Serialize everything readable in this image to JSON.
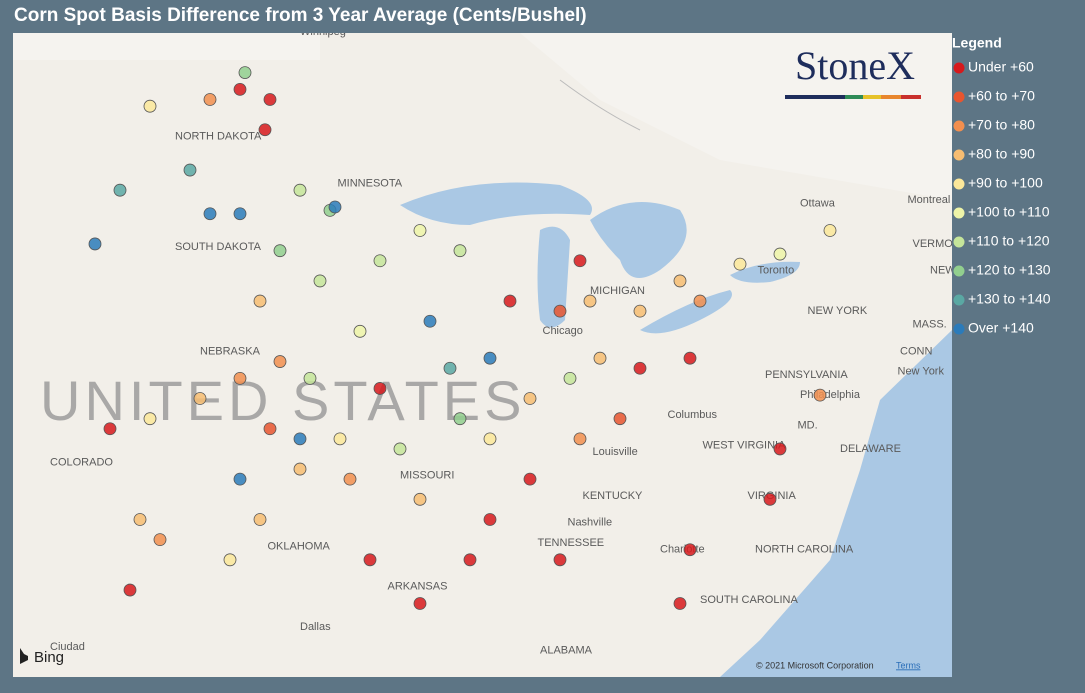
{
  "title": "Corn Spot Basis Difference from 3 Year Average (Cents/Bushel)",
  "legend": {
    "title": "Legend",
    "items": [
      {
        "name": "Under +60",
        "color": "#d7191c"
      },
      {
        "name": "+60 to +70",
        "color": "#e8552f"
      },
      {
        "name": "+70 to +80",
        "color": "#f28f4f"
      },
      {
        "name": "+80 to +90",
        "color": "#f7bd72"
      },
      {
        "name": "+90 to +100",
        "color": "#fbe79a"
      },
      {
        "name": "+100 to +110",
        "color": "#eef4a8"
      },
      {
        "name": "+110 to +120",
        "color": "#c5e59a"
      },
      {
        "name": "+120 to +130",
        "color": "#92cf8e"
      },
      {
        "name": "+130 to +140",
        "color": "#5aa8a3"
      },
      {
        "name": "Over +140",
        "color": "#2b7bba"
      }
    ]
  },
  "logo": "StoneX",
  "map": {
    "attribution": "© 2021 Microsoft Corporation",
    "terms": "Terms",
    "provider": "Bing",
    "places": [
      {
        "name": "NORTH DAKOTA",
        "lon": -101.8,
        "lat": 47.4
      },
      {
        "name": "MINNESOTA",
        "lon": -95.3,
        "lat": 46.0
      },
      {
        "name": "SOUTH DAKOTA",
        "lon": -101.8,
        "lat": 44.1
      },
      {
        "name": "NEBRASKA",
        "lon": -100.8,
        "lat": 41.0
      },
      {
        "name": "COLORADO",
        "lon": -106.8,
        "lat": 37.7
      },
      {
        "name": "OKLAHOMA",
        "lon": -98.1,
        "lat": 35.2
      },
      {
        "name": "ARKANSAS",
        "lon": -93.3,
        "lat": 34.0
      },
      {
        "name": "MISSOURI",
        "lon": -92.8,
        "lat": 37.3
      },
      {
        "name": "KENTUCKY",
        "lon": -85.5,
        "lat": 36.7
      },
      {
        "name": "TENNESSEE",
        "lon": -87.3,
        "lat": 35.3
      },
      {
        "name": "WEST VIRGINIA",
        "lon": -80.7,
        "lat": 38.2
      },
      {
        "name": "VIRGINIA",
        "lon": -78.9,
        "lat": 36.7
      },
      {
        "name": "NORTH CAROLINA",
        "lon": -78.6,
        "lat": 35.1
      },
      {
        "name": "SOUTH CAROLINA",
        "lon": -80.8,
        "lat": 33.6
      },
      {
        "name": "PENNSYLVANIA",
        "lon": -78.2,
        "lat": 40.3
      },
      {
        "name": "NEW YORK",
        "lon": -76.5,
        "lat": 42.2
      },
      {
        "name": "ALABAMA",
        "lon": -87.2,
        "lat": 32.1
      },
      {
        "name": "MICHIGAN",
        "lon": -85.2,
        "lat": 42.8
      },
      {
        "name": "Chicago",
        "lon": -87.1,
        "lat": 41.6
      },
      {
        "name": "Louisville",
        "lon": -85.1,
        "lat": 38.0
      },
      {
        "name": "Nashville",
        "lon": -86.1,
        "lat": 35.9
      },
      {
        "name": "Columbus",
        "lon": -82.1,
        "lat": 39.1
      },
      {
        "name": "Philadelphia",
        "lon": -76.8,
        "lat": 39.7
      },
      {
        "name": "New York",
        "lon": -72.9,
        "lat": 40.4
      },
      {
        "name": "Dallas",
        "lon": -96.8,
        "lat": 32.8
      },
      {
        "name": "Charlotte",
        "lon": -82.4,
        "lat": 35.1
      },
      {
        "name": "Ottawa",
        "lon": -76.8,
        "lat": 45.4
      },
      {
        "name": "Montreal",
        "lon": -72.5,
        "lat": 45.5
      },
      {
        "name": "Toronto",
        "lon": -78.5,
        "lat": 43.4
      },
      {
        "name": "DELAWARE",
        "lon": -75.2,
        "lat": 38.1
      },
      {
        "name": "VERMONT",
        "lon": -72.3,
        "lat": 44.2
      },
      {
        "name": "NEW HAMPSHIRE",
        "lon": -71.6,
        "lat": 43.4
      },
      {
        "name": "MASS.",
        "lon": -72.3,
        "lat": 41.8
      },
      {
        "name": "CONN",
        "lon": -72.8,
        "lat": 41.0
      },
      {
        "name": "MD.",
        "lon": -76.9,
        "lat": 38.8
      },
      {
        "name": "Winnipeg",
        "lon": -96.8,
        "lat": 50.5
      },
      {
        "name": "Ciudad",
        "lon": -106.8,
        "lat": 32.2
      }
    ],
    "country": {
      "name": "UNITED STATES",
      "lon": -107.2,
      "lat": 39.4
    },
    "points": [
      [
        -99.2,
        48.8,
        0
      ],
      [
        -98.0,
        48.5,
        0
      ],
      [
        -98.2,
        47.6,
        0
      ],
      [
        -100.4,
        48.5,
        2
      ],
      [
        -101.2,
        46.4,
        8
      ],
      [
        -100.4,
        45.1,
        9
      ],
      [
        -99.2,
        45.1,
        9
      ],
      [
        -104.0,
        45.8,
        8
      ],
      [
        -105.0,
        44.2,
        9
      ],
      [
        -96.8,
        45.8,
        6
      ],
      [
        -95.6,
        45.2,
        7
      ],
      [
        -97.6,
        44.0,
        7
      ],
      [
        -96.0,
        43.1,
        6
      ],
      [
        -98.4,
        42.5,
        3
      ],
      [
        -97.6,
        40.7,
        2
      ],
      [
        -99.2,
        40.2,
        2
      ],
      [
        -100.8,
        39.6,
        3
      ],
      [
        -102.8,
        39.0,
        4
      ],
      [
        -104.4,
        38.7,
        0
      ],
      [
        -98.0,
        38.7,
        1
      ],
      [
        -96.8,
        37.5,
        3
      ],
      [
        -98.4,
        36.0,
        3
      ],
      [
        -99.6,
        34.8,
        4
      ],
      [
        -103.6,
        33.9,
        0
      ],
      [
        -91.6,
        41.9,
        9
      ],
      [
        -90.8,
        40.5,
        8
      ],
      [
        -89.2,
        40.8,
        9
      ],
      [
        -94.4,
        41.6,
        5
      ],
      [
        -93.6,
        43.7,
        6
      ],
      [
        -92.0,
        44.6,
        5
      ],
      [
        -90.4,
        44.0,
        6
      ],
      [
        -93.6,
        39.9,
        0
      ],
      [
        -95.2,
        38.4,
        4
      ],
      [
        -89.2,
        38.4,
        4
      ],
      [
        -90.4,
        39.0,
        7
      ],
      [
        -87.6,
        39.6,
        3
      ],
      [
        -86.0,
        40.2,
        6
      ],
      [
        -84.8,
        40.8,
        3
      ],
      [
        -83.2,
        40.5,
        0
      ],
      [
        -81.2,
        40.8,
        0
      ],
      [
        -84.0,
        39.0,
        1
      ],
      [
        -85.6,
        38.4,
        2
      ],
      [
        -87.6,
        37.2,
        0
      ],
      [
        -89.2,
        36.0,
        0
      ],
      [
        -90.0,
        34.8,
        0
      ],
      [
        -86.4,
        34.8,
        0
      ],
      [
        -85.2,
        42.5,
        3
      ],
      [
        -86.4,
        42.2,
        1
      ],
      [
        -83.2,
        42.2,
        3
      ],
      [
        -81.6,
        43.1,
        3
      ],
      [
        -80.8,
        42.5,
        2
      ],
      [
        -79.2,
        43.6,
        4
      ],
      [
        -77.6,
        43.9,
        5
      ],
      [
        -88.4,
        42.5,
        0
      ],
      [
        -85.6,
        43.7,
        0
      ],
      [
        -77.6,
        38.1,
        0
      ],
      [
        -78.0,
        36.6,
        0
      ],
      [
        -81.2,
        35.1,
        0
      ],
      [
        -81.6,
        33.5,
        0
      ],
      [
        -76.0,
        39.7,
        2
      ],
      [
        -92.0,
        33.5,
        0
      ],
      [
        -94.0,
        34.8,
        0
      ],
      [
        -99.2,
        37.2,
        9
      ],
      [
        -96.8,
        38.4,
        9
      ],
      [
        -95.4,
        45.3,
        9
      ],
      [
        -75.6,
        44.6,
        4
      ],
      [
        -102.8,
        48.3,
        4
      ],
      [
        -99.0,
        49.3,
        7
      ],
      [
        -96.4,
        40.2,
        6
      ],
      [
        -94.8,
        37.2,
        2
      ],
      [
        -92.8,
        38.1,
        6
      ],
      [
        -92.0,
        36.6,
        3
      ],
      [
        -103.2,
        36.0,
        3
      ],
      [
        -102.4,
        35.4,
        2
      ]
    ]
  }
}
